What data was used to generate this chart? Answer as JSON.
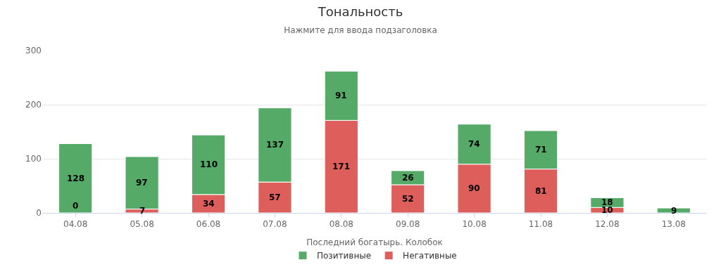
{
  "chart_data": {
    "type": "bar",
    "title": "Тональность",
    "subtitle": "Нажмите для ввода подзаголовка",
    "xlabel": "Последний богатырь. Колобок",
    "categories": [
      "04.08",
      "05.08",
      "06.08",
      "07.08",
      "08.08",
      "09.08",
      "10.08",
      "11.08",
      "12.08",
      "13.08"
    ],
    "series": [
      {
        "name": "Негативные",
        "color": "#dd5e5a",
        "values": [
          0,
          7,
          34,
          57,
          171,
          52,
          90,
          81,
          10,
          0
        ],
        "value_labels": [
          null,
          "7",
          "34",
          "57",
          "171",
          "52",
          "90",
          "81",
          "10",
          null
        ]
      },
      {
        "name": "Позитивные",
        "color": "#55aa67",
        "values": [
          128,
          97,
          110,
          137,
          91,
          26,
          74,
          71,
          18,
          9
        ],
        "value_labels": [
          "128",
          "97",
          "110",
          "137",
          "91",
          "26",
          "74",
          "71",
          "18",
          "9"
        ]
      }
    ],
    "stacked": true,
    "annotations": [
      {
        "text": "0",
        "x": "04.08",
        "y": 0
      }
    ],
    "ylim": [
      0,
      300
    ],
    "yticks": [
      0,
      100,
      200,
      300
    ],
    "grid": "y",
    "legend": "bottom"
  }
}
